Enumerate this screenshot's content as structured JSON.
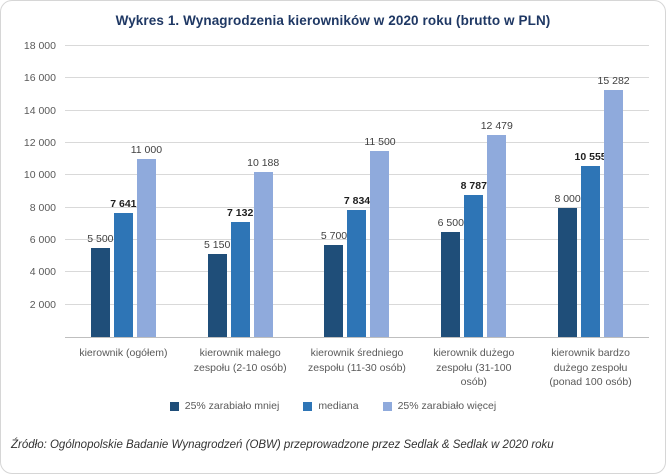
{
  "page": {
    "title": "Wykres 1. Wynagrodzenia kierowników w 2020 roku (brutto w PLN)",
    "source": "Źródło: Ogólnopolskie Badanie Wynagrodzeń (OBW) przeprowadzone przez Sedlak & Sedlak w 2020 roku"
  },
  "colors": {
    "title": "#1f3864",
    "grid": "#d9d9d9",
    "axis": "#bfbfbf",
    "tick_text": "#595959",
    "value_label": "#404040",
    "median_label": "#1f1f1f"
  },
  "chart_data": {
    "type": "bar",
    "title": "Wykres 1. Wynagrodzenia kierowników w 2020 roku (brutto w PLN)",
    "categories": [
      "kierownik (ogółem)",
      "kierownik małego zespołu (2-10 osób)",
      "kierownik średniego zespołu (11-30 osób)",
      "kierownik dużego zespołu (31-100 osób)",
      "kierownik bardzo dużego zespołu (ponad 100 osób)"
    ],
    "series": [
      {
        "name": "25% zarabiało mniej",
        "color": "#1f4e79",
        "bold_labels": false,
        "values": [
          5500,
          5150,
          5700,
          6500,
          8000
        ]
      },
      {
        "name": "mediana",
        "color": "#2e75b6",
        "bold_labels": true,
        "values": [
          7641,
          7132,
          7834,
          8787,
          10555
        ]
      },
      {
        "name": "25% zarabiało więcej",
        "color": "#8faadc",
        "bold_labels": false,
        "values": [
          11000,
          10188,
          11500,
          12479,
          15282
        ]
      }
    ],
    "ylim": [
      0,
      18000
    ],
    "ytick_step": 2000,
    "grid": true,
    "legend_position": "bottom",
    "ylabel": "",
    "xlabel": ""
  }
}
